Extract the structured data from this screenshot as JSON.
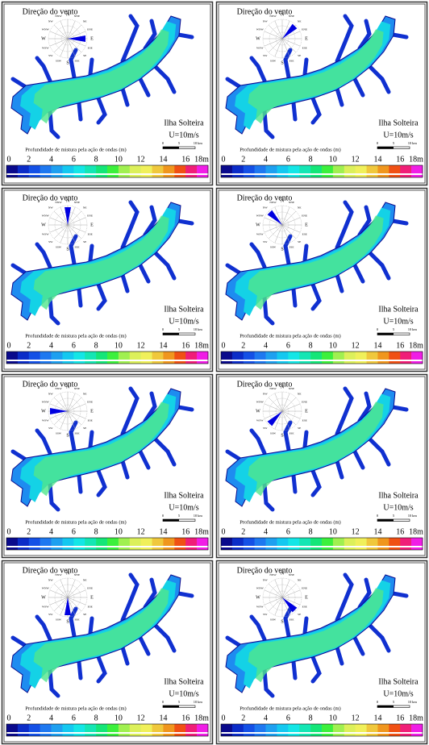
{
  "panels": [
    {
      "title": "Direção do vento",
      "location": "Ilha Solteira",
      "speed": "U=10m/s",
      "wind_direction": "E"
    },
    {
      "title": "Direção do vento",
      "location": "Ilha Solteira",
      "speed": "U=10m/s",
      "wind_direction": "NE"
    },
    {
      "title": "Direção do vento",
      "location": "Ilha Solteira",
      "speed": "U=10m/s",
      "wind_direction": "N"
    },
    {
      "title": "Direção do vento",
      "location": "Ilha Solteira",
      "speed": "U=10m/s",
      "wind_direction": "NW"
    },
    {
      "title": "Direção do vento",
      "location": "Ilha Solteira",
      "speed": "U=10m/s",
      "wind_direction": "W"
    },
    {
      "title": "Direção do vento",
      "location": "Ilha Solteira",
      "speed": "U=10m/s",
      "wind_direction": "SW"
    },
    {
      "title": "Direção do vento",
      "location": "Ilha Solteira",
      "speed": "U=10m/s",
      "wind_direction": "S"
    },
    {
      "title": "Direção do vento",
      "location": "Ilha Solteira",
      "speed": "U=10m/s",
      "wind_direction": "SE"
    }
  ],
  "compass": [
    "N",
    "NNE",
    "NE",
    "ENE",
    "E",
    "ESE",
    "SE",
    "SSE",
    "S",
    "SSW",
    "SW",
    "WSW",
    "W",
    "WNW",
    "NW",
    "NNW"
  ],
  "scale_bar": {
    "ticks": [
      0,
      5,
      10
    ],
    "unit": "km",
    "max": 10
  },
  "legend": {
    "title": "Profundidade de mistura pela ação de ondas (m)",
    "range": [
      0,
      18
    ],
    "ticks": [
      0,
      2,
      4,
      6,
      8,
      10,
      12,
      14,
      16,
      {
        "value": 18,
        "label": "18m"
      }
    ],
    "colors": [
      "#0a0a8c",
      "#0b2cc8",
      "#1450e6",
      "#1e78f0",
      "#1ea0f0",
      "#14c8f0",
      "#14e6e6",
      "#14e6b4",
      "#14e678",
      "#3cf03c",
      "#a0f050",
      "#dcf05a",
      "#f0f05a",
      "#f0c83c",
      "#f0961e",
      "#f05014",
      "#f01e78",
      "#f01ee6"
    ]
  }
}
